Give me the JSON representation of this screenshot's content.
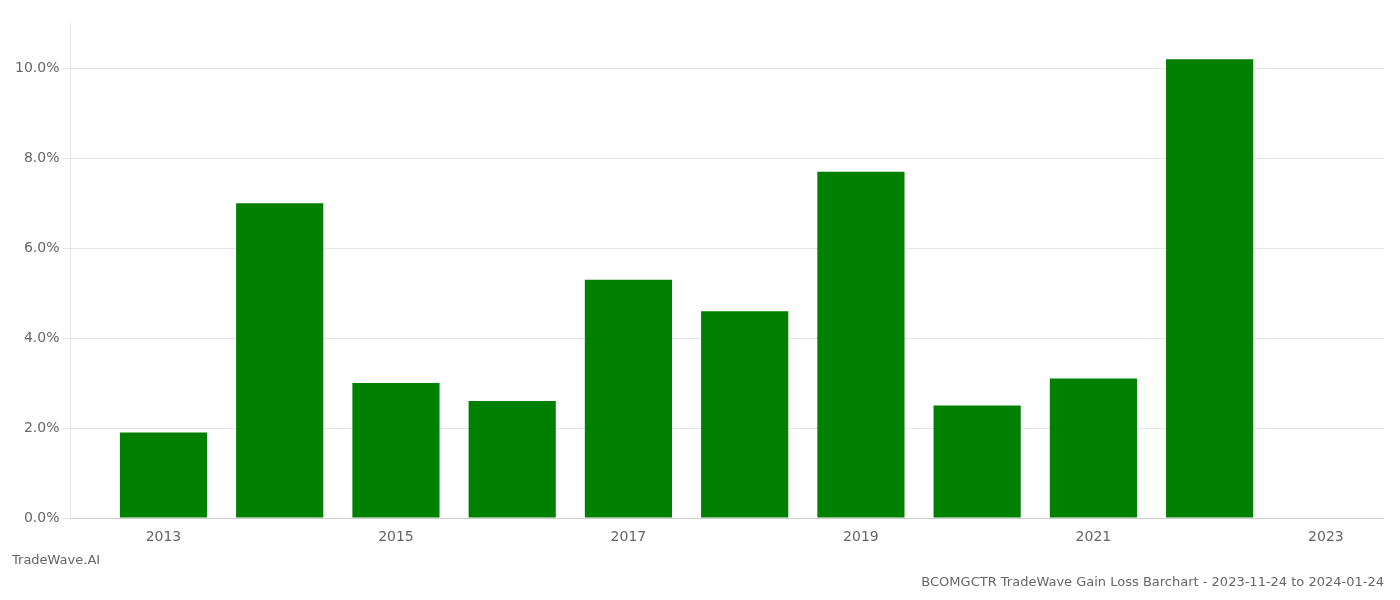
{
  "chart_data": {
    "type": "bar",
    "title": "BCOMGCTR TradeWave Gain Loss Barchart - 2023-11-24 to 2024-01-24",
    "annotations": [
      "TradeWave.AI"
    ],
    "x": [
      2013,
      2014,
      2015,
      2016,
      2017,
      2018,
      2019,
      2020,
      2021,
      2022
    ],
    "values": [
      0.019,
      0.07,
      0.03,
      0.026,
      0.053,
      0.046,
      0.077,
      0.025,
      0.031,
      0.102
    ],
    "color": "#008000",
    "xlim": [
      2012.2,
      2023.5
    ],
    "xticks": [
      2013,
      2015,
      2017,
      2019,
      2021,
      2023
    ],
    "ylim": [
      0.0,
      0.11
    ],
    "yticks": [
      {
        "value": 0.0,
        "label": "0.0%"
      },
      {
        "value": 0.02,
        "label": "2.0%"
      },
      {
        "value": 0.04,
        "label": "4.0%"
      },
      {
        "value": 0.06,
        "label": "6.0%"
      },
      {
        "value": 0.08,
        "label": "8.0%"
      },
      {
        "value": 0.1,
        "label": "10.0%"
      }
    ],
    "grid": "y"
  }
}
